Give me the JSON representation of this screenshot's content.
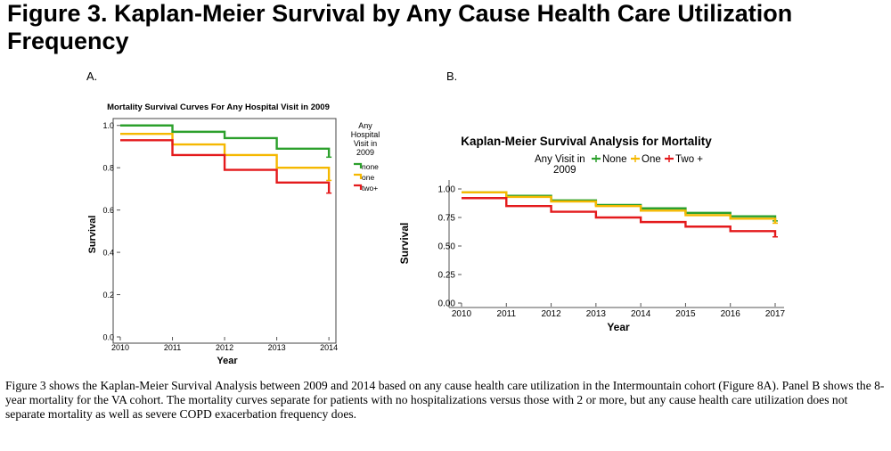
{
  "figure": {
    "title": "Figure 3. Kaplan-Meier Survival by Any Cause Health Care Utilization Frequency",
    "caption": "Figure 3 shows the Kaplan-Meier Survival Analysis between 2009 and 2014 based on any cause health care utilization in the Intermountain cohort (Figure 8A). Panel B shows the 8- year mortality for the VA cohort.  The mortality curves separate for patients with no hospitalizations versus  those with 2 or more, but any cause health care utilization does not separate mortality as well as severe COPD exacerbation frequency does."
  },
  "panels": {
    "a_label": "A.",
    "b_label": "B."
  },
  "chart_data": [
    {
      "type": "line",
      "step": true,
      "title": "Mortality Survival Curves For Any Hospital Visit in 2009",
      "xlabel": "Year",
      "ylabel": "Survival",
      "x_ticks": [
        "2010",
        "2011",
        "2012",
        "2013",
        "2014"
      ],
      "y_ticks": [
        "0.0",
        "0.2",
        "0.4",
        "0.6",
        "0.8",
        "1.0"
      ],
      "xlim": [
        2010,
        2014.1
      ],
      "ylim": [
        0,
        1.02
      ],
      "legend_title": "Any Hospital Visit in 2009",
      "legend_position": "right",
      "grid": false,
      "series": [
        {
          "name": "none",
          "color": "#2ca02c",
          "x": [
            2010,
            2011,
            2012,
            2013,
            2014
          ],
          "y": [
            1.0,
            0.97,
            0.94,
            0.89,
            0.85
          ]
        },
        {
          "name": "one",
          "color": "#f5b800",
          "x": [
            2010,
            2011,
            2012,
            2013,
            2014
          ],
          "y": [
            0.96,
            0.91,
            0.86,
            0.8,
            0.74
          ]
        },
        {
          "name": "two+",
          "color": "#e41a1c",
          "x": [
            2010,
            2011,
            2012,
            2013,
            2014
          ],
          "y": [
            0.93,
            0.86,
            0.79,
            0.73,
            0.68
          ]
        }
      ]
    },
    {
      "type": "line",
      "step": true,
      "title": "Kaplan-Meier Survival Analysis for Mortality",
      "xlabel": "Year",
      "ylabel": "Survival",
      "x_ticks": [
        "2010",
        "2011",
        "2012",
        "2013",
        "2014",
        "2015",
        "2016",
        "2017"
      ],
      "y_ticks": [
        "0.00",
        "0.25",
        "0.50",
        "0.75",
        "1.00"
      ],
      "xlim": [
        2010,
        2017
      ],
      "ylim": [
        0,
        1.0
      ],
      "legend_title": "Any Visit in 2009",
      "legend_position": "top",
      "grid": false,
      "series": [
        {
          "name": "None",
          "color": "#2ca02c",
          "x": [
            2010,
            2011,
            2012,
            2013,
            2014,
            2015,
            2016,
            2017
          ],
          "y": [
            0.97,
            0.94,
            0.9,
            0.86,
            0.83,
            0.79,
            0.76,
            0.72
          ]
        },
        {
          "name": "One",
          "color": "#f5b800",
          "x": [
            2010,
            2011,
            2012,
            2013,
            2014,
            2015,
            2016,
            2017
          ],
          "y": [
            0.97,
            0.93,
            0.89,
            0.85,
            0.81,
            0.77,
            0.74,
            0.7
          ]
        },
        {
          "name": "Two +",
          "color": "#e41a1c",
          "x": [
            2010,
            2011,
            2012,
            2013,
            2014,
            2015,
            2016,
            2017
          ],
          "y": [
            0.92,
            0.85,
            0.8,
            0.75,
            0.71,
            0.67,
            0.63,
            0.58
          ]
        }
      ]
    }
  ]
}
